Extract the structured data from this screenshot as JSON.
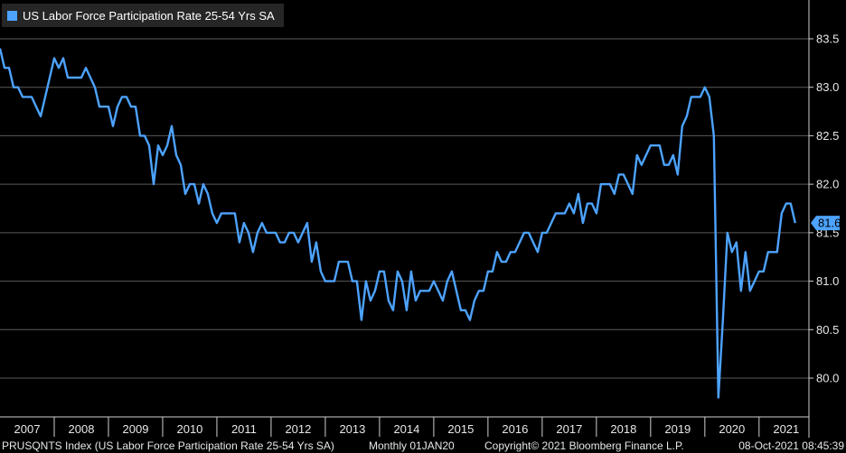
{
  "legend": {
    "label": "US Labor Force Participation Rate 25-54 Yrs SA",
    "color": "#4da3ff"
  },
  "last_value_badge": "81.6",
  "footer": {
    "source": "PRUSQNTS Index (US Labor Force Participation Rate 25-54 Yrs SA)",
    "frequency": "Monthly 01JAN20",
    "copyright": "Copyright© 2021 Bloomberg Finance L.P.",
    "timestamp": "08-Oct-2021 08:45:39"
  },
  "colors": {
    "background": "#000000",
    "series": "#4da3ff",
    "grid": "#5a5a5a",
    "badge": "#4da3ff"
  },
  "chart_data": {
    "type": "line",
    "title": "",
    "xlabel": "",
    "ylabel": "",
    "ylim": [
      79.6,
      83.9
    ],
    "xlim": [
      2007.0,
      2021.92
    ],
    "y_ticks": [
      "80.0",
      "80.5",
      "81.0",
      "81.5",
      "82.0",
      "82.5",
      "83.0",
      "83.5"
    ],
    "x_ticks": [
      "2007",
      "2008",
      "2009",
      "2010",
      "2011",
      "2012",
      "2013",
      "2014",
      "2015",
      "2016",
      "2017",
      "2018",
      "2019",
      "2020",
      "2021"
    ],
    "grid": true,
    "legend_position": "top-left",
    "y_axis_side": "right",
    "series": [
      {
        "name": "US Labor Force Participation Rate 25-54 Yrs SA",
        "start": "2007-01",
        "frequency": "monthly",
        "values": [
          83.4,
          83.2,
          83.2,
          83.0,
          83.0,
          82.9,
          82.9,
          82.9,
          82.8,
          82.7,
          82.9,
          83.1,
          83.3,
          83.2,
          83.3,
          83.1,
          83.1,
          83.1,
          83.1,
          83.2,
          83.1,
          83.0,
          82.8,
          82.8,
          82.8,
          82.6,
          82.8,
          82.9,
          82.9,
          82.8,
          82.8,
          82.5,
          82.5,
          82.4,
          82.0,
          82.4,
          82.3,
          82.4,
          82.6,
          82.3,
          82.2,
          81.9,
          82.0,
          82.0,
          81.8,
          82.0,
          81.9,
          81.7,
          81.6,
          81.7,
          81.7,
          81.7,
          81.7,
          81.4,
          81.6,
          81.5,
          81.3,
          81.5,
          81.6,
          81.5,
          81.5,
          81.5,
          81.4,
          81.4,
          81.5,
          81.5,
          81.4,
          81.5,
          81.6,
          81.2,
          81.4,
          81.1,
          81.0,
          81.0,
          81.0,
          81.2,
          81.2,
          81.2,
          81.0,
          81.0,
          80.6,
          81.0,
          80.8,
          80.9,
          81.1,
          81.1,
          80.8,
          80.7,
          81.1,
          81.0,
          80.7,
          81.1,
          80.8,
          80.9,
          80.9,
          80.9,
          81.0,
          80.9,
          80.8,
          81.0,
          81.1,
          80.9,
          80.7,
          80.7,
          80.6,
          80.8,
          80.9,
          80.9,
          81.1,
          81.1,
          81.3,
          81.2,
          81.2,
          81.3,
          81.3,
          81.4,
          81.5,
          81.5,
          81.4,
          81.3,
          81.5,
          81.5,
          81.6,
          81.7,
          81.7,
          81.7,
          81.8,
          81.7,
          81.9,
          81.6,
          81.8,
          81.8,
          81.7,
          82.0,
          82.0,
          82.0,
          81.9,
          82.1,
          82.1,
          82.0,
          81.9,
          82.3,
          82.2,
          82.3,
          82.4,
          82.4,
          82.4,
          82.2,
          82.2,
          82.3,
          82.1,
          82.6,
          82.7,
          82.9,
          82.9,
          82.9,
          83.0,
          82.9,
          82.5,
          79.8,
          80.6,
          81.5,
          81.3,
          81.4,
          80.9,
          81.3,
          80.9,
          81.0,
          81.1,
          81.1,
          81.3,
          81.3,
          81.3,
          81.7,
          81.8,
          81.8,
          81.6
        ]
      }
    ]
  }
}
